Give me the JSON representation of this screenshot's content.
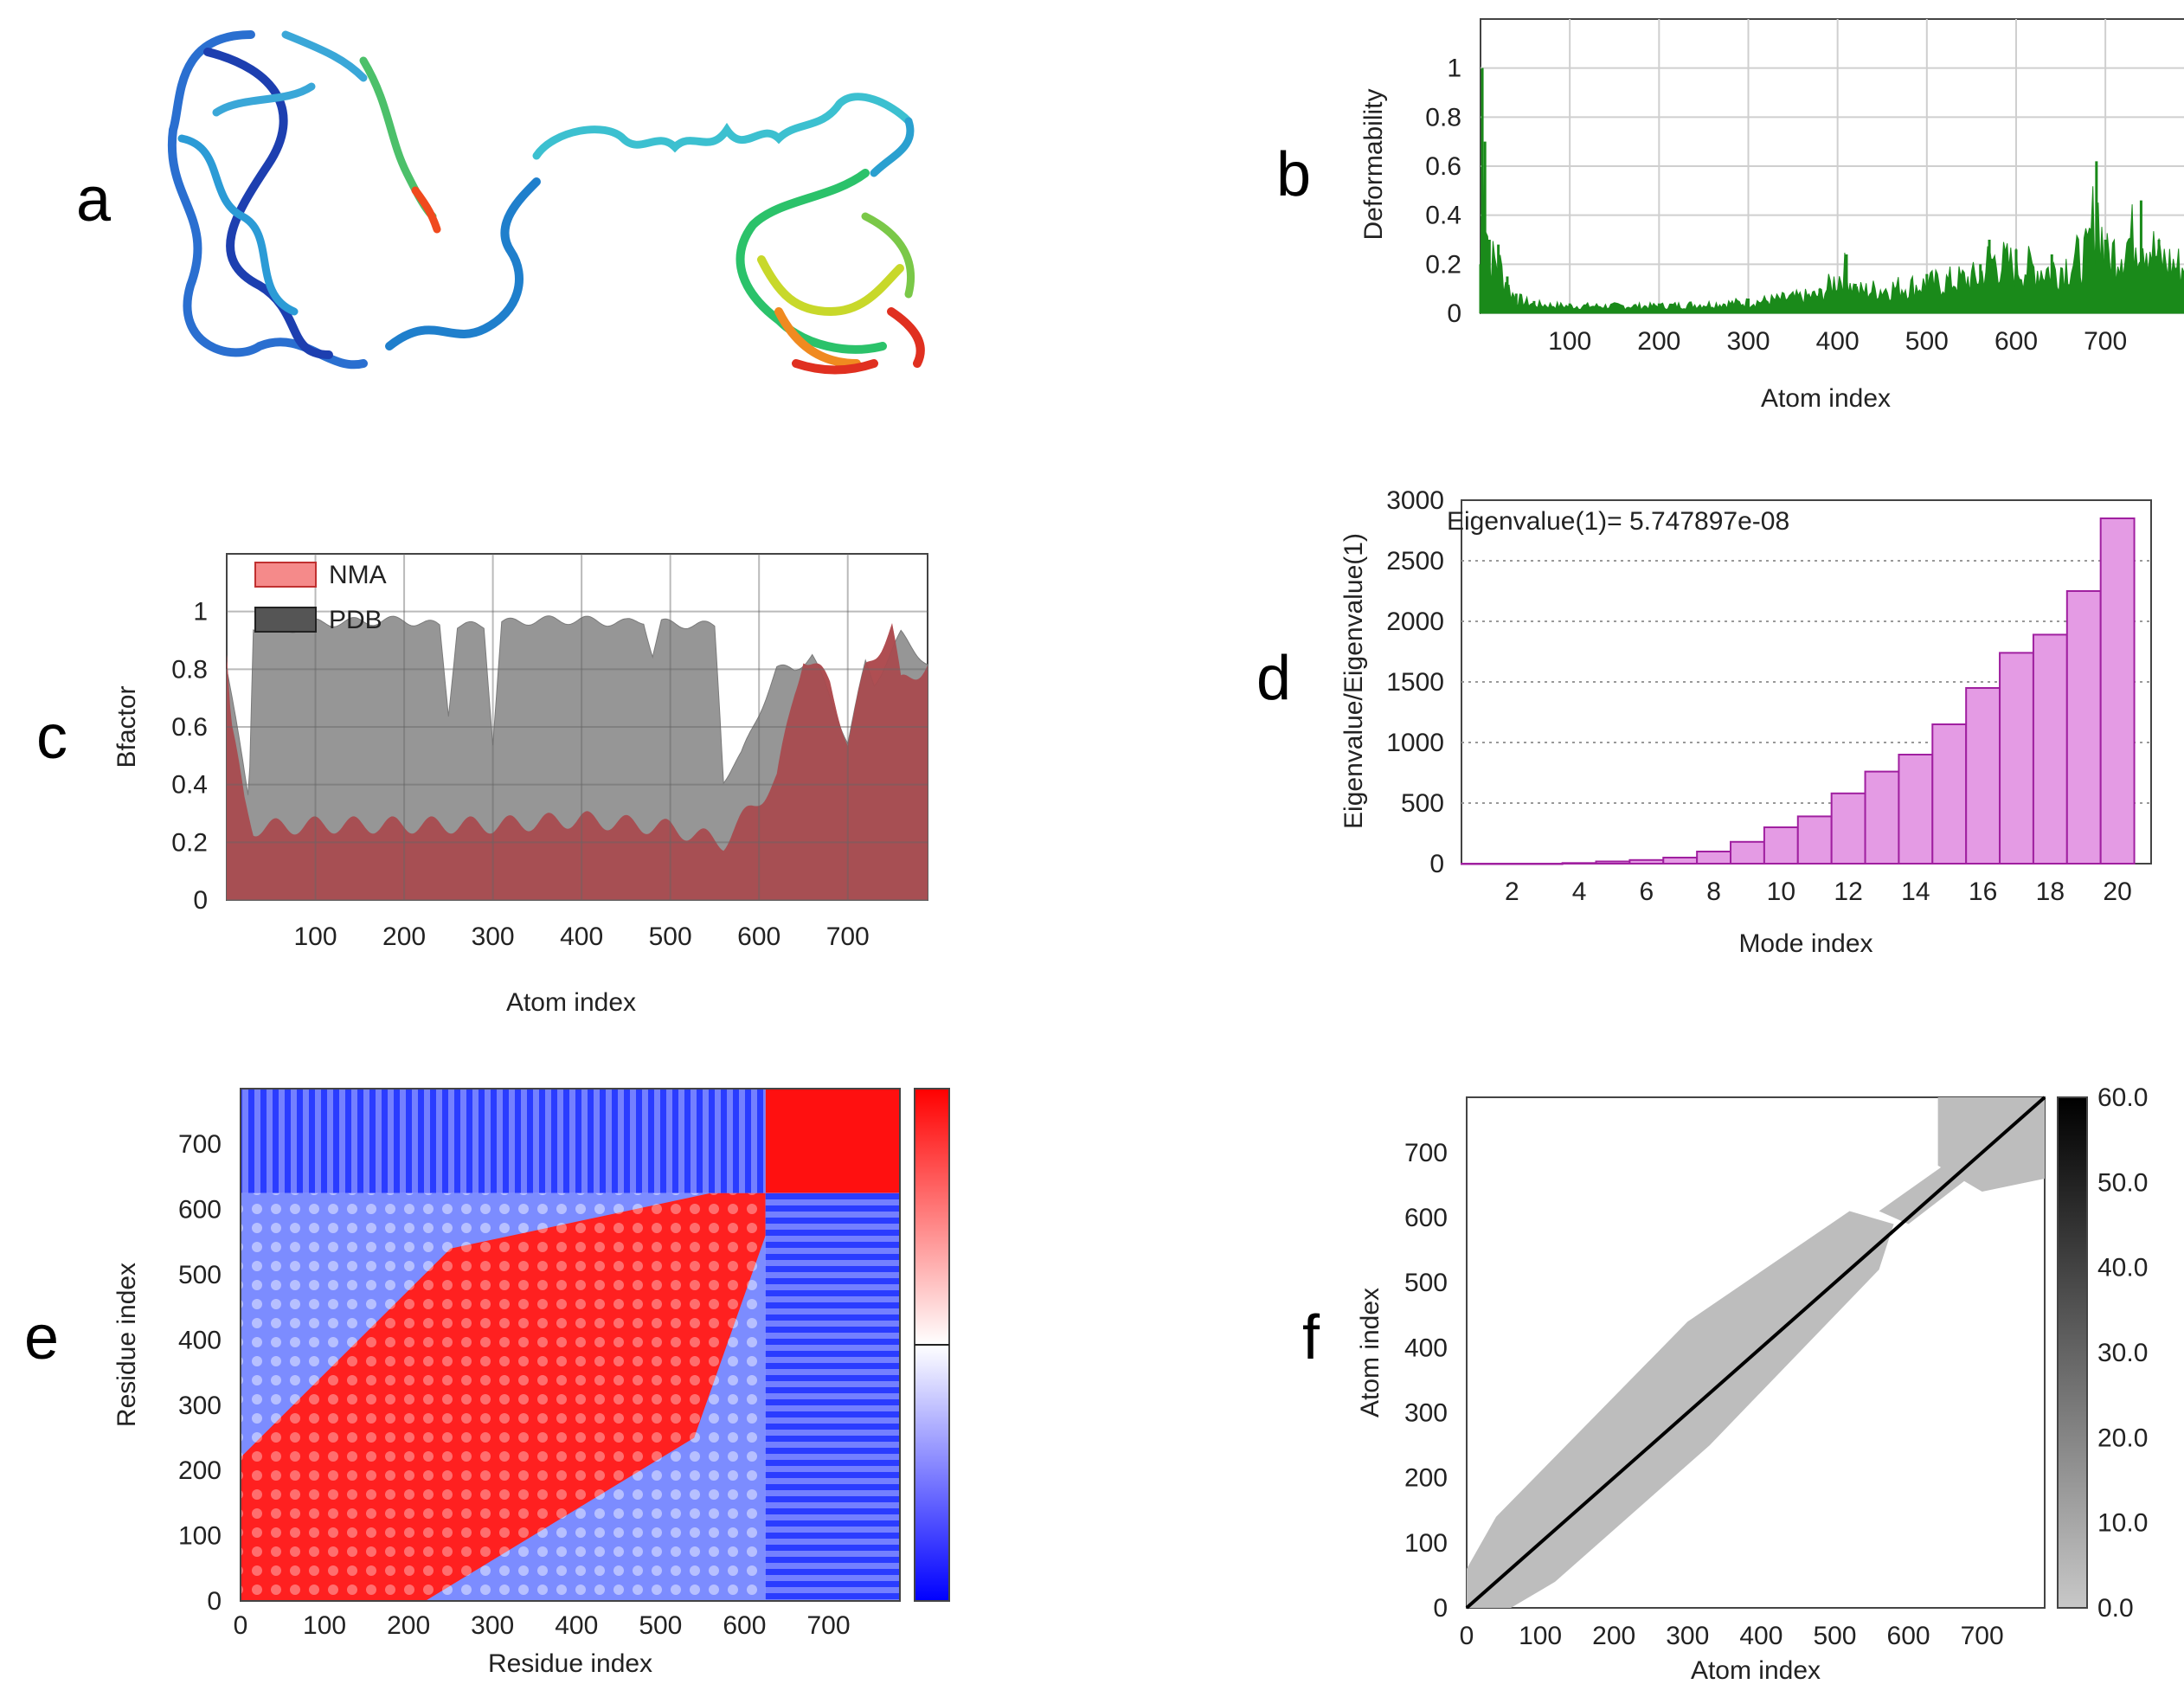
{
  "panel_labels": {
    "a": "a",
    "b": "b",
    "c": "c",
    "d": "d",
    "e": "e",
    "f": "f"
  },
  "colors": {
    "deformability": "#1a8a1a",
    "nma_fill": "#a8494d",
    "nma_legend": "#f58a8a",
    "pdb_fill": "#969696",
    "pdb_legend": "#555555",
    "eigen_bar": "#e49be4",
    "eigen_edge": "#a020a0",
    "heat_red": "#ff0000",
    "heat_blue": "#0000ff",
    "density_gray": "#bdbdbd",
    "diagonal": "#000000"
  },
  "structure": {
    "description_icon": "protein-ribbon-structure"
  },
  "chart_data": [
    {
      "id": "b",
      "type": "area",
      "title": "",
      "xlabel": "Atom index",
      "ylabel": "Deformability",
      "xlim": [
        0,
        790
      ],
      "ylim": [
        0,
        1.2
      ],
      "xticks": [
        100,
        200,
        300,
        400,
        500,
        600,
        700
      ],
      "yticks": [
        0,
        0.2,
        0.4,
        0.6,
        0.8,
        1
      ],
      "ytick_labels": [
        "0",
        "0.2",
        "0.4",
        "0.6",
        "0.8",
        "1"
      ],
      "grid": true,
      "series": [
        {
          "name": "Deformability",
          "x": [
            0,
            2,
            5,
            10,
            20,
            30,
            40,
            60,
            100,
            200,
            300,
            380,
            410,
            420,
            500,
            560,
            570,
            600,
            640,
            680,
            690,
            700,
            740,
            760,
            790
          ],
          "y": [
            0.2,
            1.0,
            0.7,
            0.3,
            0.28,
            0.15,
            0.08,
            0.05,
            0.04,
            0.04,
            0.06,
            0.1,
            0.24,
            0.12,
            0.16,
            0.2,
            0.3,
            0.26,
            0.24,
            0.32,
            0.62,
            0.3,
            0.46,
            0.3,
            0.25
          ]
        }
      ]
    },
    {
      "id": "c",
      "type": "area",
      "title": "",
      "xlabel": "Atom index",
      "ylabel": "Bfactor",
      "xlim": [
        0,
        790
      ],
      "ylim": [
        0,
        1.2
      ],
      "xticks": [
        100,
        200,
        300,
        400,
        500,
        600,
        700
      ],
      "yticks": [
        0,
        0.2,
        0.4,
        0.6,
        0.8,
        1
      ],
      "ytick_labels": [
        "0",
        "0.2",
        "0.4",
        "0.6",
        "0.8",
        "1"
      ],
      "grid": true,
      "legend": "top-left",
      "series": [
        {
          "name": "PDB",
          "x": [
            0,
            25,
            30,
            60,
            100,
            200,
            240,
            250,
            260,
            290,
            300,
            310,
            350,
            400,
            450,
            470,
            480,
            490,
            550,
            555,
            560,
            580,
            600,
            620,
            640,
            660,
            700,
            720,
            730,
            760,
            790
          ],
          "y": [
            0.8,
            0.35,
            0.95,
            0.93,
            0.96,
            0.97,
            0.95,
            0.65,
            0.95,
            0.95,
            0.55,
            0.96,
            0.97,
            0.97,
            0.96,
            0.97,
            0.85,
            0.96,
            0.95,
            0.7,
            0.42,
            0.5,
            0.65,
            0.8,
            0.8,
            0.85,
            0.55,
            0.82,
            0.75,
            0.92,
            0.82
          ]
        },
        {
          "name": "NMA",
          "x": [
            0,
            5,
            20,
            30,
            100,
            200,
            300,
            400,
            500,
            560,
            600,
            620,
            640,
            650,
            680,
            700,
            720,
            730,
            750,
            760,
            790
          ],
          "y": [
            0.85,
            0.6,
            0.35,
            0.25,
            0.26,
            0.26,
            0.26,
            0.28,
            0.25,
            0.2,
            0.35,
            0.42,
            0.72,
            0.85,
            0.75,
            0.55,
            0.8,
            0.85,
            0.95,
            0.75,
            0.82
          ]
        }
      ]
    },
    {
      "id": "d",
      "type": "bar",
      "title": "",
      "annotation": "Eigenvalue(1)= 5.747897e-08",
      "xlabel": "Mode index",
      "ylabel": "Eigenvalue/Eigenvalue(1)",
      "xlim": [
        0.5,
        21
      ],
      "ylim": [
        0,
        3000
      ],
      "xticks": [
        2,
        4,
        6,
        8,
        10,
        12,
        14,
        16,
        18,
        20
      ],
      "yticks": [
        0,
        500,
        1000,
        1500,
        2000,
        2500,
        3000
      ],
      "grid": true,
      "categories": [
        1,
        2,
        3,
        4,
        5,
        6,
        7,
        8,
        9,
        10,
        11,
        12,
        13,
        14,
        15,
        16,
        17,
        18,
        19,
        20
      ],
      "values": [
        0,
        0,
        0,
        5,
        18,
        30,
        50,
        100,
        180,
        300,
        390,
        580,
        760,
        900,
        1150,
        1450,
        1740,
        1890,
        2250,
        2850
      ]
    },
    {
      "id": "e",
      "type": "heatmap",
      "title": "",
      "xlabel": "Residue index",
      "ylabel": "Residue index",
      "xlim": [
        0,
        785
      ],
      "ylim": [
        0,
        785
      ],
      "xticks": [
        0,
        100,
        200,
        300,
        400,
        500,
        600,
        700
      ],
      "yticks": [
        0,
        100,
        200,
        300,
        400,
        500,
        600,
        700
      ],
      "domain_boundary": 625,
      "blocks": [
        {
          "region": "residues 0-625 vs 0-625",
          "correlation": "positive"
        },
        {
          "region": "residues 625-785 vs 625-785",
          "correlation": "positive"
        },
        {
          "region": "residues 0-625 vs 625-785",
          "correlation": "negative"
        }
      ],
      "colorbar": [
        "red",
        "white",
        "blue"
      ]
    },
    {
      "id": "f",
      "type": "heatmap",
      "title": "",
      "xlabel": "Atom index",
      "ylabel": "Atom index",
      "xlim": [
        0,
        785
      ],
      "ylim": [
        0,
        785
      ],
      "xticks": [
        0,
        100,
        200,
        300,
        400,
        500,
        600,
        700
      ],
      "yticks": [
        0,
        100,
        200,
        300,
        400,
        500,
        600,
        700
      ],
      "colorbar_ticks": [
        "0.0",
        "10.0",
        "20.0",
        "30.0",
        "40.0",
        "50.0",
        "60.0"
      ],
      "colorbar_range": [
        0,
        60
      ]
    }
  ]
}
